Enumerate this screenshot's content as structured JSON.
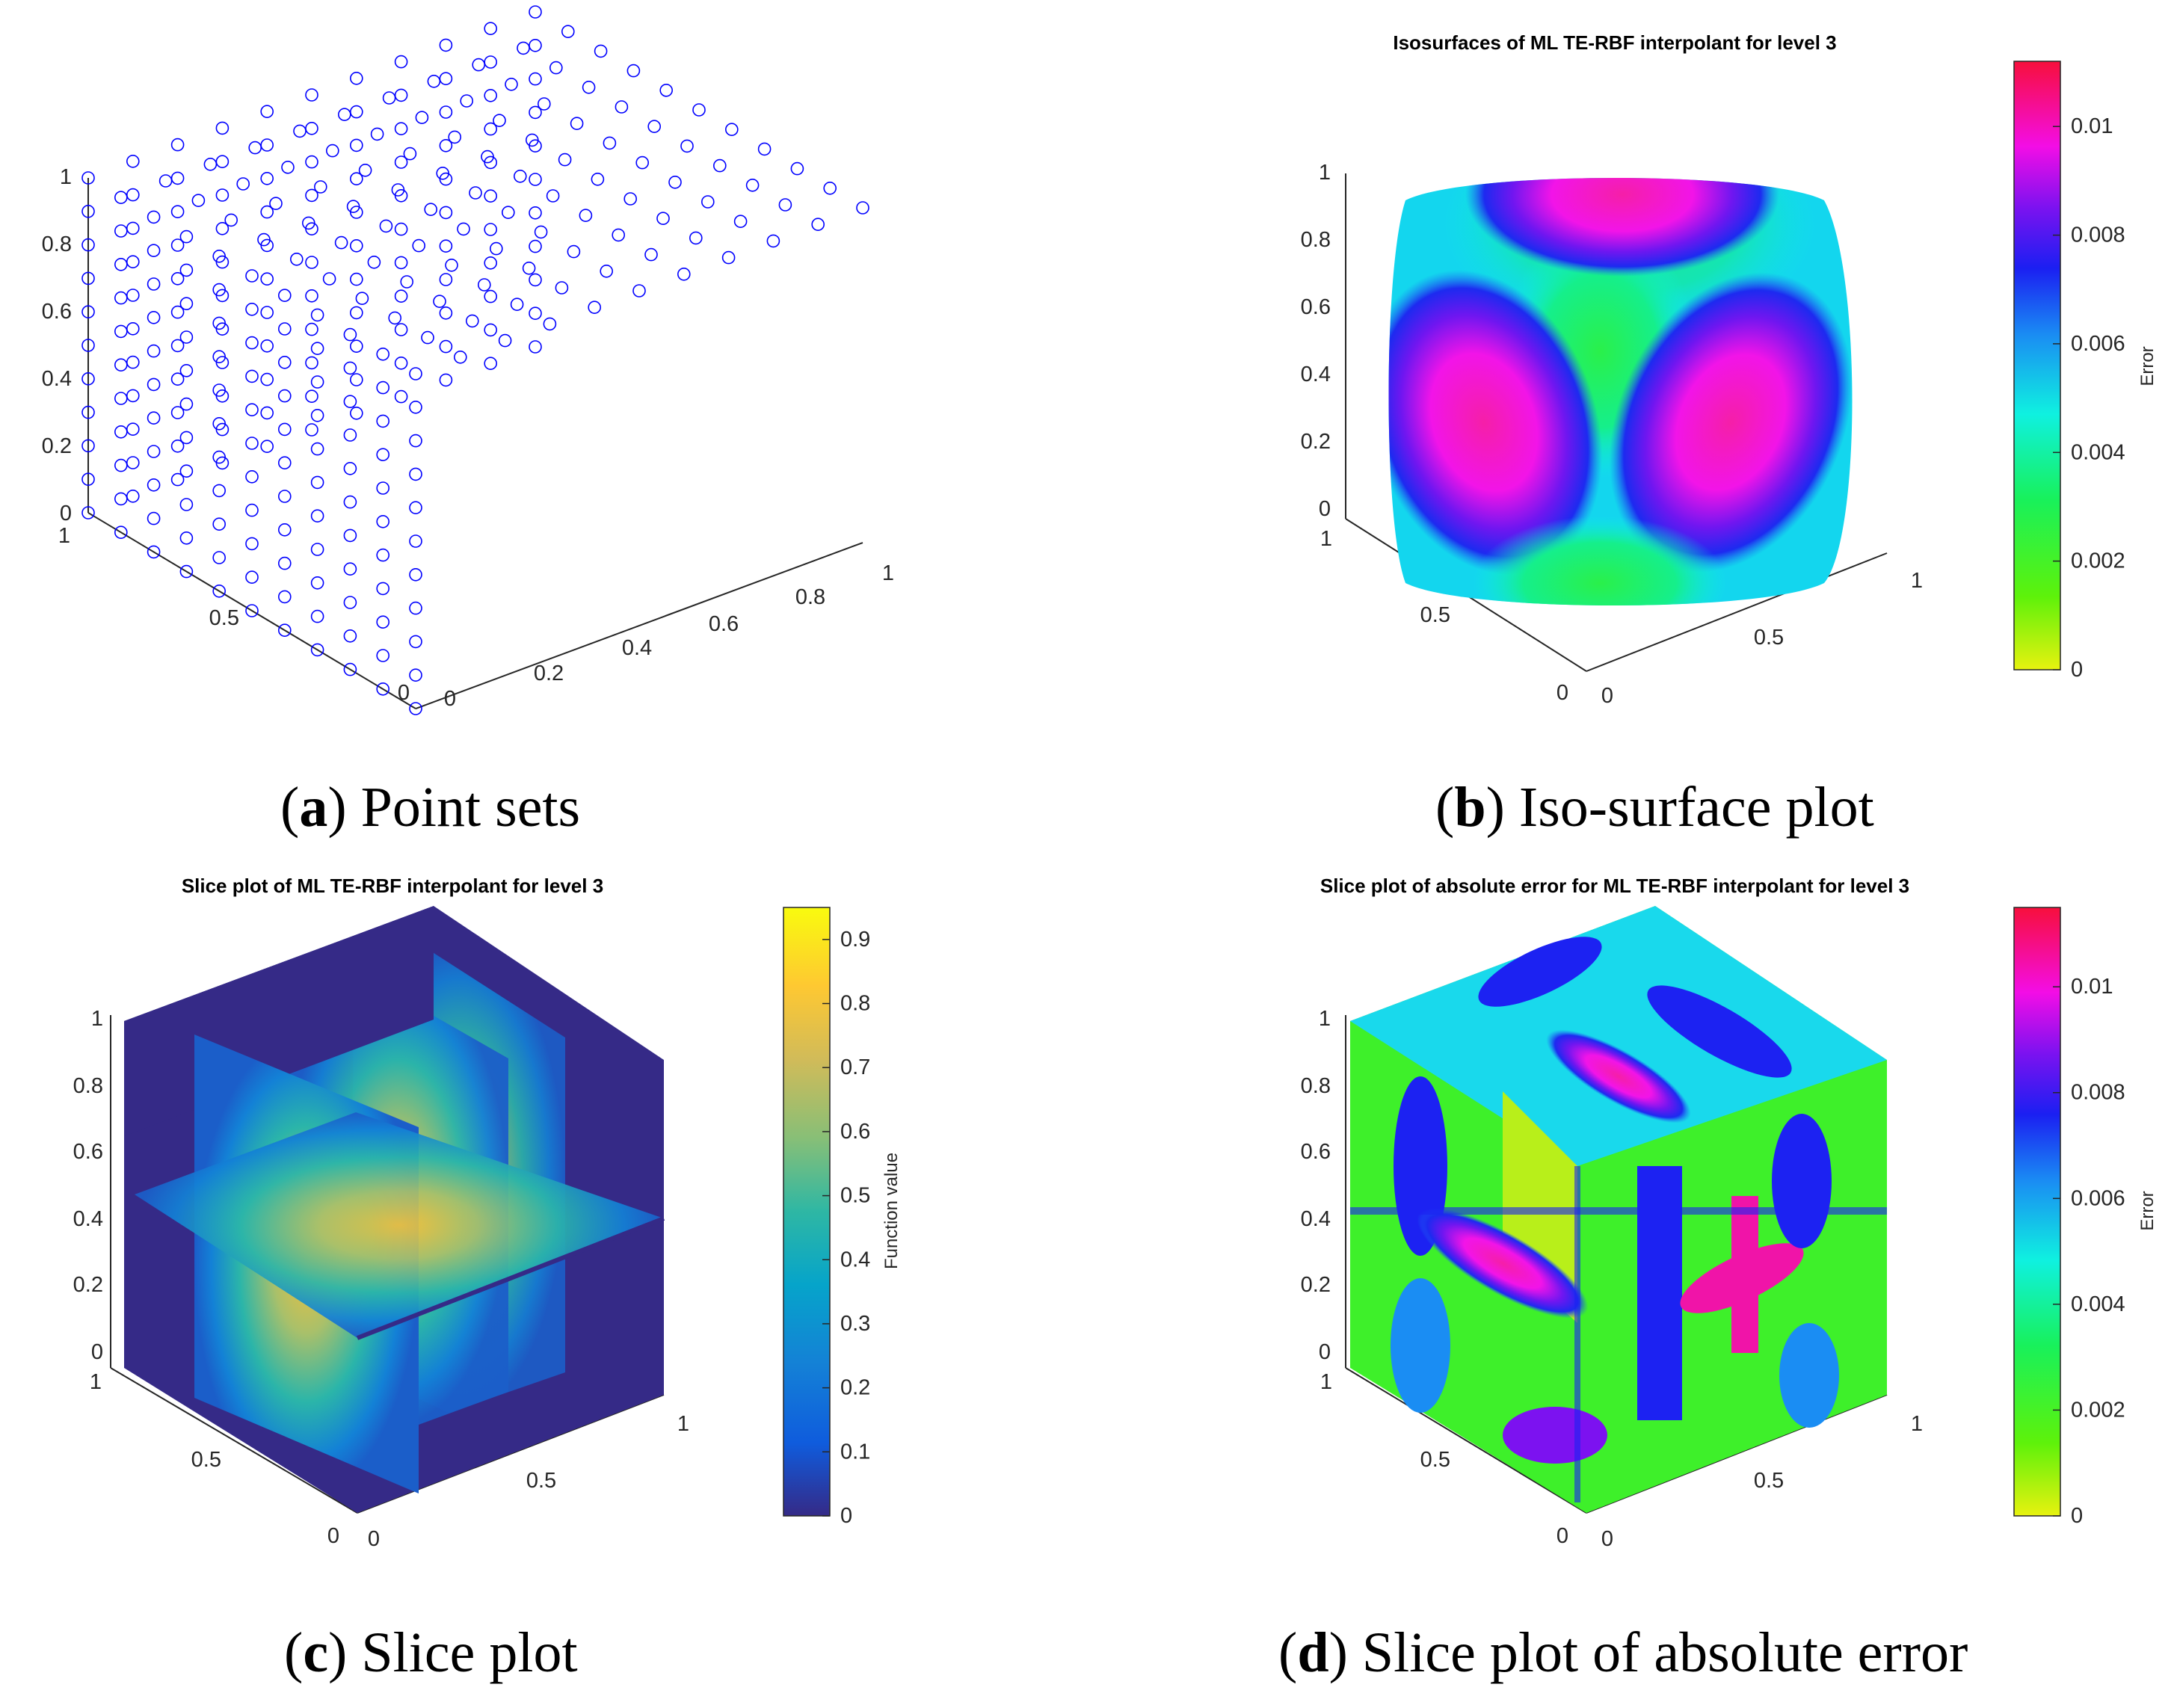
{
  "chart_data": [
    {
      "panel": "a",
      "type": "scatter",
      "title": "",
      "caption_letter": "a",
      "caption_text": "Point sets",
      "marker": "circle",
      "marker_color": "#0000ff",
      "grid_points": "uniform lattice in unit cube",
      "z_ticks": [
        "0",
        "0.2",
        "0.4",
        "0.6",
        "0.8",
        "1"
      ],
      "x_ticks": [
        "0",
        "0.2",
        "0.4",
        "0.6",
        "0.8",
        "1"
      ],
      "y_ticks": [
        "0",
        "0.5",
        "1"
      ],
      "xlim": [
        0,
        1
      ],
      "ylim": [
        0,
        1
      ],
      "zlim": [
        0,
        1
      ]
    },
    {
      "panel": "b",
      "type": "heatmap",
      "title": "Isosurfaces of ML TE-RBF interpolant for level 3",
      "caption_letter": "b",
      "caption_text": "Iso-surface plot",
      "colorbar_label": "Error",
      "colorbar_ticks": [
        "0",
        "0.002",
        "0.004",
        "0.006",
        "0.008",
        "0.01"
      ],
      "colorbar_range": [
        0,
        0.0112
      ],
      "colormap": "hsv-reversed",
      "z_ticks": [
        "0",
        "0.2",
        "0.4",
        "0.6",
        "0.8",
        "1"
      ],
      "x_ticks": [
        "0",
        "0.5",
        "1"
      ],
      "y_ticks": [
        "0",
        "0.5",
        "1"
      ]
    },
    {
      "panel": "c",
      "type": "heatmap",
      "title": "Slice plot of ML TE-RBF interpolant for level 3",
      "caption_letter": "c",
      "caption_text": "Slice plot",
      "colorbar_label": "Function value",
      "colorbar_ticks": [
        "0",
        "0.1",
        "0.2",
        "0.3",
        "0.4",
        "0.5",
        "0.6",
        "0.7",
        "0.8",
        "0.9"
      ],
      "colorbar_range": [
        0,
        0.95
      ],
      "colormap": "parula",
      "z_ticks": [
        "0",
        "0.2",
        "0.4",
        "0.6",
        "0.8",
        "1"
      ],
      "x_ticks": [
        "0",
        "0.5",
        "1"
      ],
      "y_ticks": [
        "0",
        "0.5",
        "1"
      ]
    },
    {
      "panel": "d",
      "type": "heatmap",
      "title": "Slice plot of absolute error for ML TE-RBF interpolant for level 3",
      "caption_letter": "d",
      "caption_text": "Slice plot of absolute error",
      "colorbar_label": "Error",
      "colorbar_ticks": [
        "0",
        "0.002",
        "0.004",
        "0.006",
        "0.008",
        "0.01"
      ],
      "colorbar_range": [
        0,
        0.0115
      ],
      "colormap": "hsv-reversed",
      "z_ticks": [
        "0",
        "0.2",
        "0.4",
        "0.6",
        "0.8",
        "1"
      ],
      "x_ticks": [
        "0",
        "0.5",
        "1"
      ],
      "y_ticks": [
        "0",
        "0.5",
        "1"
      ]
    }
  ],
  "colors": {
    "parula_dark": "#352a87",
    "parula_mid": "#1ba5c3",
    "parula_high": "#f9fb0e",
    "marker_blue": "#0000ff"
  }
}
